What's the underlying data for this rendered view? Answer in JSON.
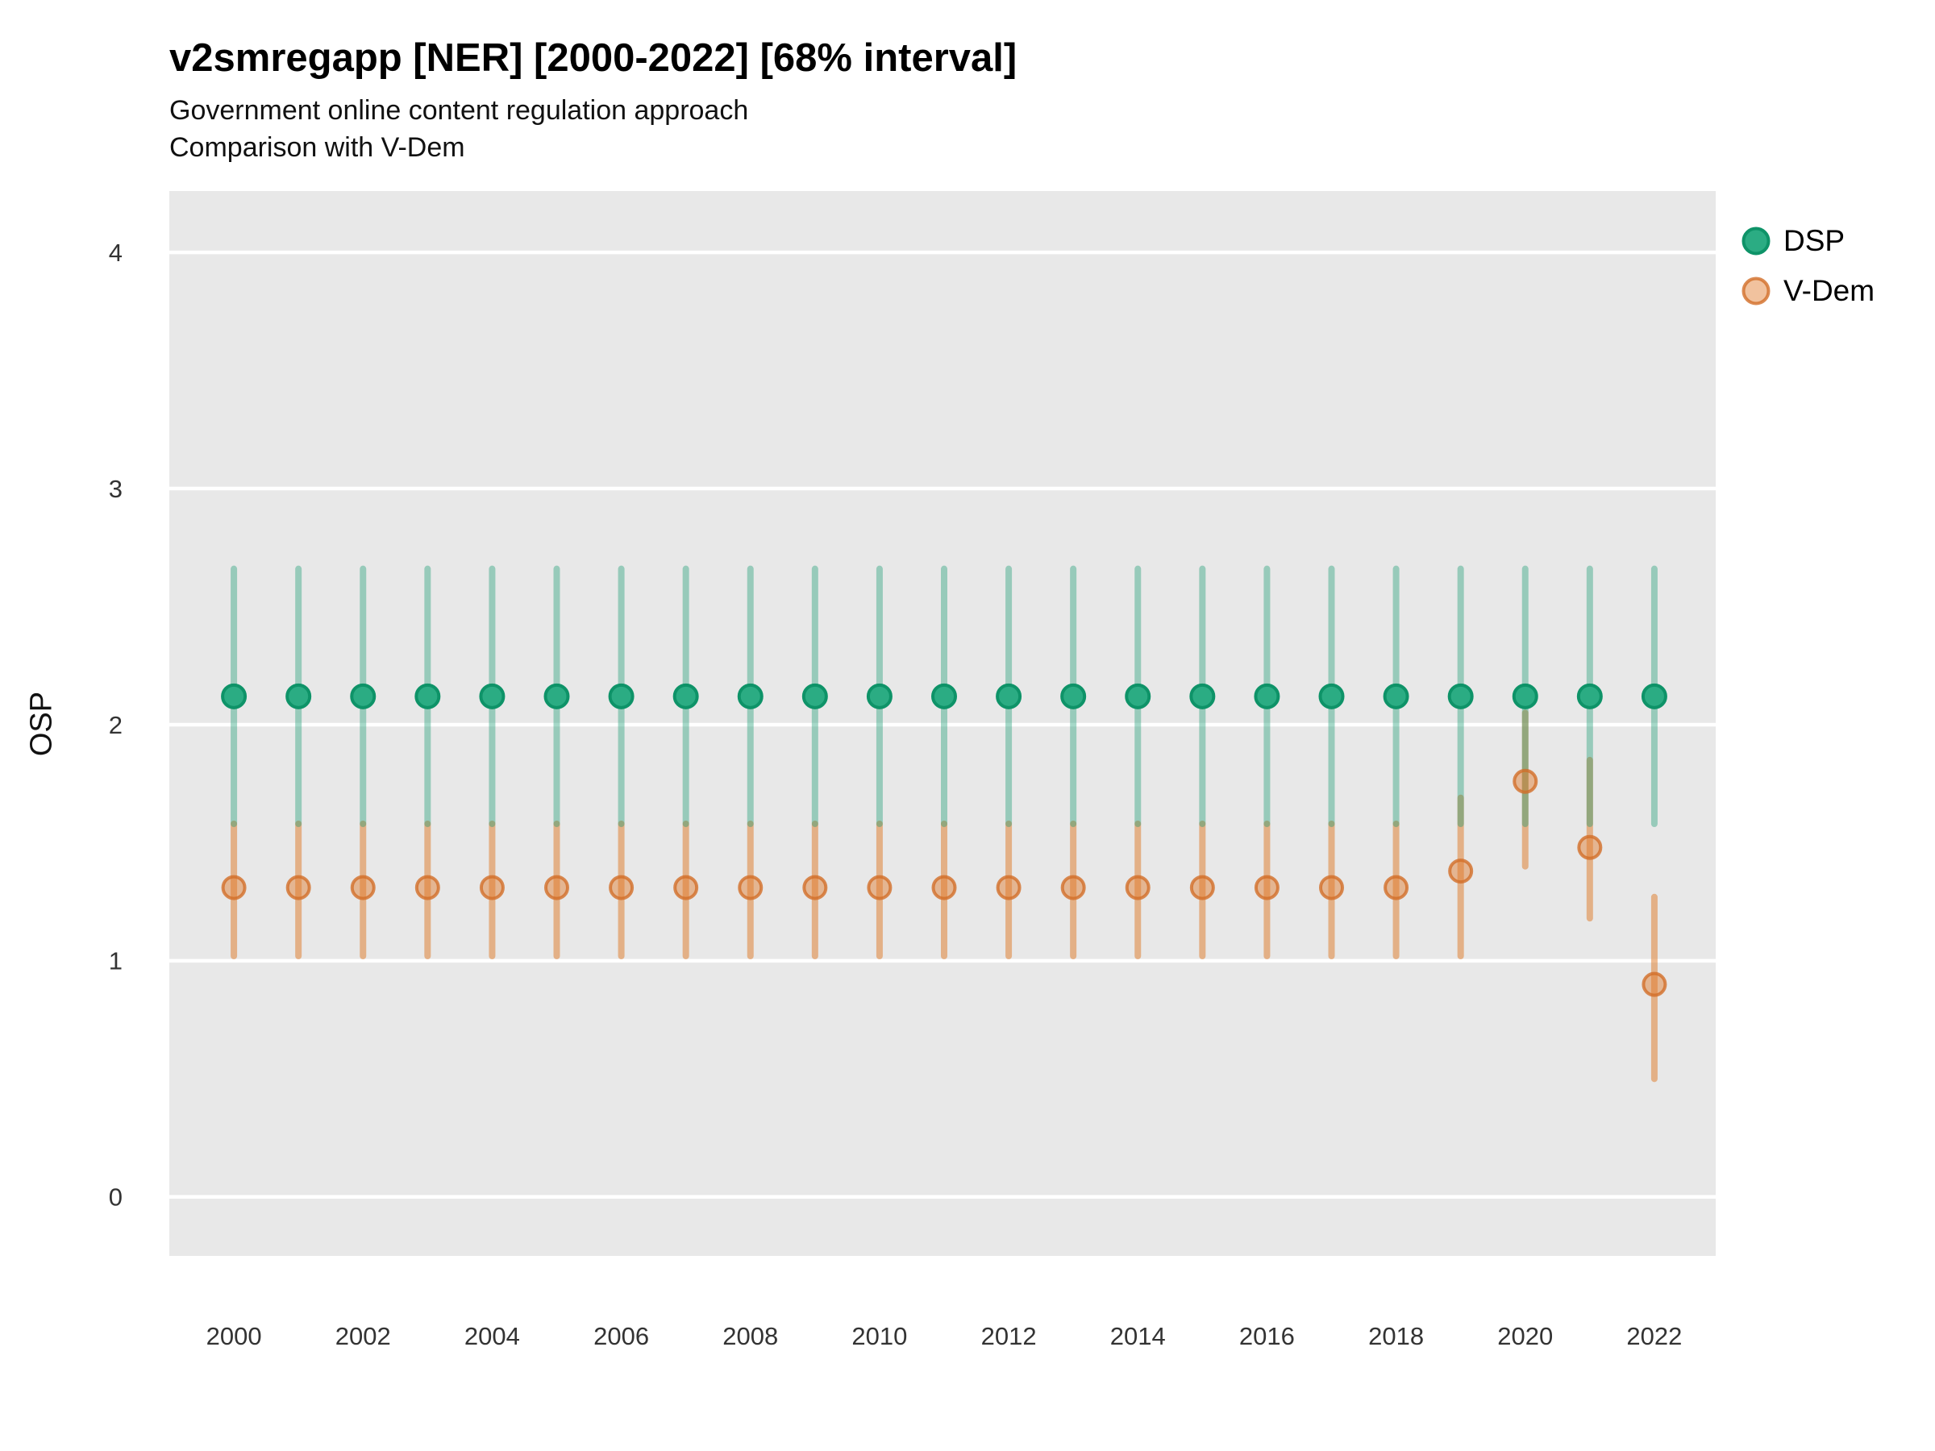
{
  "chart_data": {
    "type": "pointrange",
    "title": "v2smregapp [NER] [2000-2022] [68% interval]",
    "subtitle": "Government online content regulation approach",
    "subtitle2": "Comparison with V-Dem",
    "ylabel": "OSP",
    "interval_level": "68%",
    "legend_position": "right",
    "grid": "horizontal major gridlines, white on gray panel, no axis ticks",
    "x_tick_labels": [
      "2000",
      "2002",
      "2004",
      "2006",
      "2008",
      "2010",
      "2012",
      "2014",
      "2016",
      "2018",
      "2020",
      "2022"
    ],
    "y_tick_labels": [
      "0",
      "1",
      "2",
      "3",
      "4"
    ],
    "y_ticks": [
      0,
      1,
      2,
      3,
      4
    ],
    "x_domain": [
      1999.0,
      2022.95
    ],
    "y_domain": [
      -0.25,
      4.26
    ],
    "colors": {
      "dsp_point_fill": "#2BAC83",
      "dsp_point_stroke": "#0E9368",
      "dsp_interval_line": "rgba(19,153,111,0.38)",
      "vdem_point_fill": "rgba(224,120,40,0.45)",
      "vdem_point_stroke": "rgba(210,110,40,0.8)",
      "vdem_interval_line": "rgba(222,119,35,0.5)",
      "panel_background": "#E8E8E8",
      "gridline": "#FFFFFF",
      "tick_label": "#333333"
    },
    "series": [
      {
        "name": "DSP",
        "points": [
          {
            "year": 2000,
            "est": 2.12,
            "lo": 1.58,
            "hi": 2.66
          },
          {
            "year": 2001,
            "est": 2.12,
            "lo": 1.58,
            "hi": 2.66
          },
          {
            "year": 2002,
            "est": 2.12,
            "lo": 1.58,
            "hi": 2.66
          },
          {
            "year": 2003,
            "est": 2.12,
            "lo": 1.58,
            "hi": 2.66
          },
          {
            "year": 2004,
            "est": 2.12,
            "lo": 1.58,
            "hi": 2.66
          },
          {
            "year": 2005,
            "est": 2.12,
            "lo": 1.58,
            "hi": 2.66
          },
          {
            "year": 2006,
            "est": 2.12,
            "lo": 1.58,
            "hi": 2.66
          },
          {
            "year": 2007,
            "est": 2.12,
            "lo": 1.58,
            "hi": 2.66
          },
          {
            "year": 2008,
            "est": 2.12,
            "lo": 1.58,
            "hi": 2.66
          },
          {
            "year": 2009,
            "est": 2.12,
            "lo": 1.58,
            "hi": 2.66
          },
          {
            "year": 2010,
            "est": 2.12,
            "lo": 1.58,
            "hi": 2.66
          },
          {
            "year": 2011,
            "est": 2.12,
            "lo": 1.58,
            "hi": 2.66
          },
          {
            "year": 2012,
            "est": 2.12,
            "lo": 1.58,
            "hi": 2.66
          },
          {
            "year": 2013,
            "est": 2.12,
            "lo": 1.58,
            "hi": 2.66
          },
          {
            "year": 2014,
            "est": 2.12,
            "lo": 1.58,
            "hi": 2.66
          },
          {
            "year": 2015,
            "est": 2.12,
            "lo": 1.58,
            "hi": 2.66
          },
          {
            "year": 2016,
            "est": 2.12,
            "lo": 1.58,
            "hi": 2.66
          },
          {
            "year": 2017,
            "est": 2.12,
            "lo": 1.58,
            "hi": 2.66
          },
          {
            "year": 2018,
            "est": 2.12,
            "lo": 1.58,
            "hi": 2.66
          },
          {
            "year": 2019,
            "est": 2.12,
            "lo": 1.58,
            "hi": 2.66
          },
          {
            "year": 2020,
            "est": 2.12,
            "lo": 1.58,
            "hi": 2.66
          },
          {
            "year": 2021,
            "est": 2.12,
            "lo": 1.58,
            "hi": 2.66
          },
          {
            "year": 2022,
            "est": 2.12,
            "lo": 1.58,
            "hi": 2.66
          }
        ]
      },
      {
        "name": "V-Dem",
        "points": [
          {
            "year": 2000,
            "est": 1.31,
            "lo": 1.02,
            "hi": 1.58
          },
          {
            "year": 2001,
            "est": 1.31,
            "lo": 1.02,
            "hi": 1.58
          },
          {
            "year": 2002,
            "est": 1.31,
            "lo": 1.02,
            "hi": 1.58
          },
          {
            "year": 2003,
            "est": 1.31,
            "lo": 1.02,
            "hi": 1.58
          },
          {
            "year": 2004,
            "est": 1.31,
            "lo": 1.02,
            "hi": 1.58
          },
          {
            "year": 2005,
            "est": 1.31,
            "lo": 1.02,
            "hi": 1.58
          },
          {
            "year": 2006,
            "est": 1.31,
            "lo": 1.02,
            "hi": 1.58
          },
          {
            "year": 2007,
            "est": 1.31,
            "lo": 1.02,
            "hi": 1.58
          },
          {
            "year": 2008,
            "est": 1.31,
            "lo": 1.02,
            "hi": 1.58
          },
          {
            "year": 2009,
            "est": 1.31,
            "lo": 1.02,
            "hi": 1.58
          },
          {
            "year": 2010,
            "est": 1.31,
            "lo": 1.02,
            "hi": 1.58
          },
          {
            "year": 2011,
            "est": 1.31,
            "lo": 1.02,
            "hi": 1.58
          },
          {
            "year": 2012,
            "est": 1.31,
            "lo": 1.02,
            "hi": 1.58
          },
          {
            "year": 2013,
            "est": 1.31,
            "lo": 1.02,
            "hi": 1.58
          },
          {
            "year": 2014,
            "est": 1.31,
            "lo": 1.02,
            "hi": 1.58
          },
          {
            "year": 2015,
            "est": 1.31,
            "lo": 1.02,
            "hi": 1.58
          },
          {
            "year": 2016,
            "est": 1.31,
            "lo": 1.02,
            "hi": 1.58
          },
          {
            "year": 2017,
            "est": 1.31,
            "lo": 1.02,
            "hi": 1.58
          },
          {
            "year": 2018,
            "est": 1.31,
            "lo": 1.02,
            "hi": 1.58
          },
          {
            "year": 2019,
            "est": 1.38,
            "lo": 1.02,
            "hi": 1.69
          },
          {
            "year": 2020,
            "est": 1.76,
            "lo": 1.4,
            "hi": 2.05
          },
          {
            "year": 2021,
            "est": 1.48,
            "lo": 1.18,
            "hi": 1.85
          },
          {
            "year": 2022,
            "est": 0.9,
            "lo": 0.5,
            "hi": 1.27
          }
        ]
      }
    ]
  }
}
